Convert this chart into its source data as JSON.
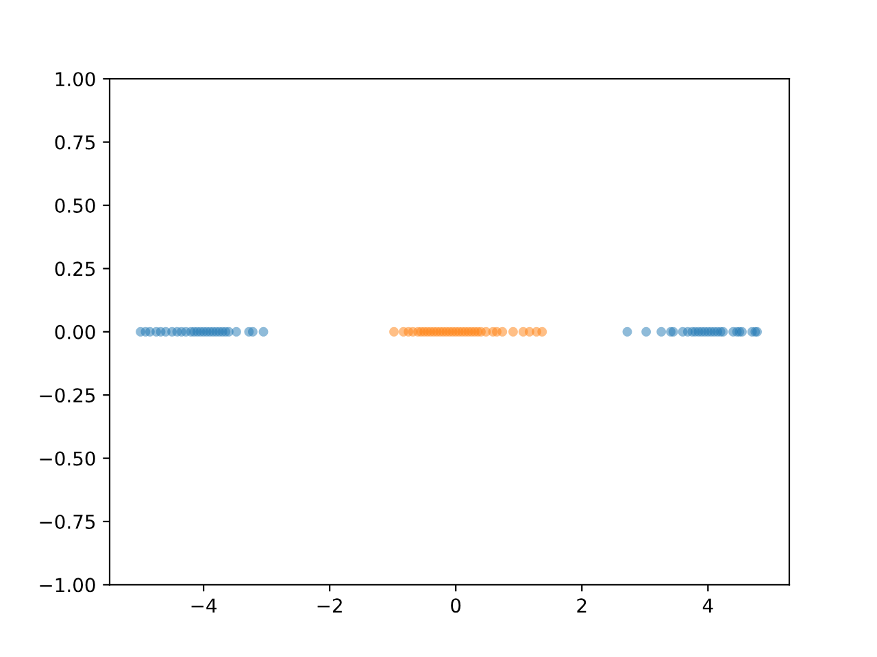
{
  "chart_data": {
    "type": "scatter",
    "xlim": [
      -5.49,
      5.29
    ],
    "ylim": [
      -1,
      1
    ],
    "xticks": [
      {
        "value": -4,
        "label": "−4"
      },
      {
        "value": -2,
        "label": "−2"
      },
      0,
      2,
      4
    ],
    "yticks": [
      {
        "value": -1,
        "label": "−1.00"
      },
      {
        "value": -0.75,
        "label": "−0.75"
      },
      {
        "value": -0.5,
        "label": "−0.50"
      },
      {
        "value": -0.25,
        "label": "−0.25"
      },
      {
        "value": 0,
        "label": "0.00"
      },
      {
        "value": 0.25,
        "label": "0.25"
      },
      {
        "value": 0.5,
        "label": "0.50"
      },
      {
        "value": 0.75,
        "label": "0.75"
      },
      {
        "value": 1,
        "label": "1.00"
      }
    ],
    "grid": false,
    "marker": "circle",
    "series": [
      {
        "color": "#1f77b4",
        "x": [
          -5.0,
          -4.92,
          -4.85,
          -4.75,
          -4.68,
          -4.6,
          -4.5,
          -4.42,
          -4.35,
          -4.28,
          -4.2,
          -4.15,
          -4.1,
          -4.05,
          -4.0,
          -3.95,
          -3.9,
          -3.85,
          -3.8,
          -3.75,
          -3.7,
          -3.65,
          -3.6,
          -3.48,
          -3.28,
          -3.22,
          -3.05,
          2.72,
          3.02,
          3.26,
          3.41,
          3.45,
          3.6,
          3.68,
          3.75,
          3.8,
          3.85,
          3.9,
          3.95,
          4.0,
          4.05,
          4.1,
          4.15,
          4.2,
          4.24,
          4.4,
          4.46,
          4.5,
          4.54,
          4.7,
          4.75,
          4.78
        ],
        "values": [
          0,
          0,
          0,
          0,
          0,
          0,
          0,
          0,
          0,
          0,
          0,
          0,
          0,
          0,
          0,
          0,
          0,
          0,
          0,
          0,
          0,
          0,
          0,
          0,
          0,
          0,
          0,
          0,
          0,
          0,
          0,
          0,
          0,
          0,
          0,
          0,
          0,
          0,
          0,
          0,
          0,
          0,
          0,
          0,
          0,
          0,
          0,
          0,
          0,
          0,
          0,
          0
        ]
      },
      {
        "color": "#ff7f0e",
        "x": [
          -0.98,
          -0.83,
          -0.75,
          -0.68,
          -0.6,
          -0.55,
          -0.5,
          -0.45,
          -0.4,
          -0.35,
          -0.3,
          -0.25,
          -0.2,
          -0.15,
          -0.1,
          -0.05,
          0,
          0.05,
          0.1,
          0.15,
          0.2,
          0.25,
          0.3,
          0.35,
          0.4,
          0.48,
          0.59,
          0.65,
          0.74,
          0.91,
          1.07,
          1.17,
          1.28,
          1.37
        ],
        "values": [
          0,
          0,
          0,
          0,
          0,
          0,
          0,
          0,
          0,
          0,
          0,
          0,
          0,
          0,
          0,
          0,
          0,
          0,
          0,
          0,
          0,
          0,
          0,
          0,
          0,
          0,
          0,
          0,
          0,
          0,
          0,
          0,
          0,
          0
        ]
      }
    ]
  }
}
